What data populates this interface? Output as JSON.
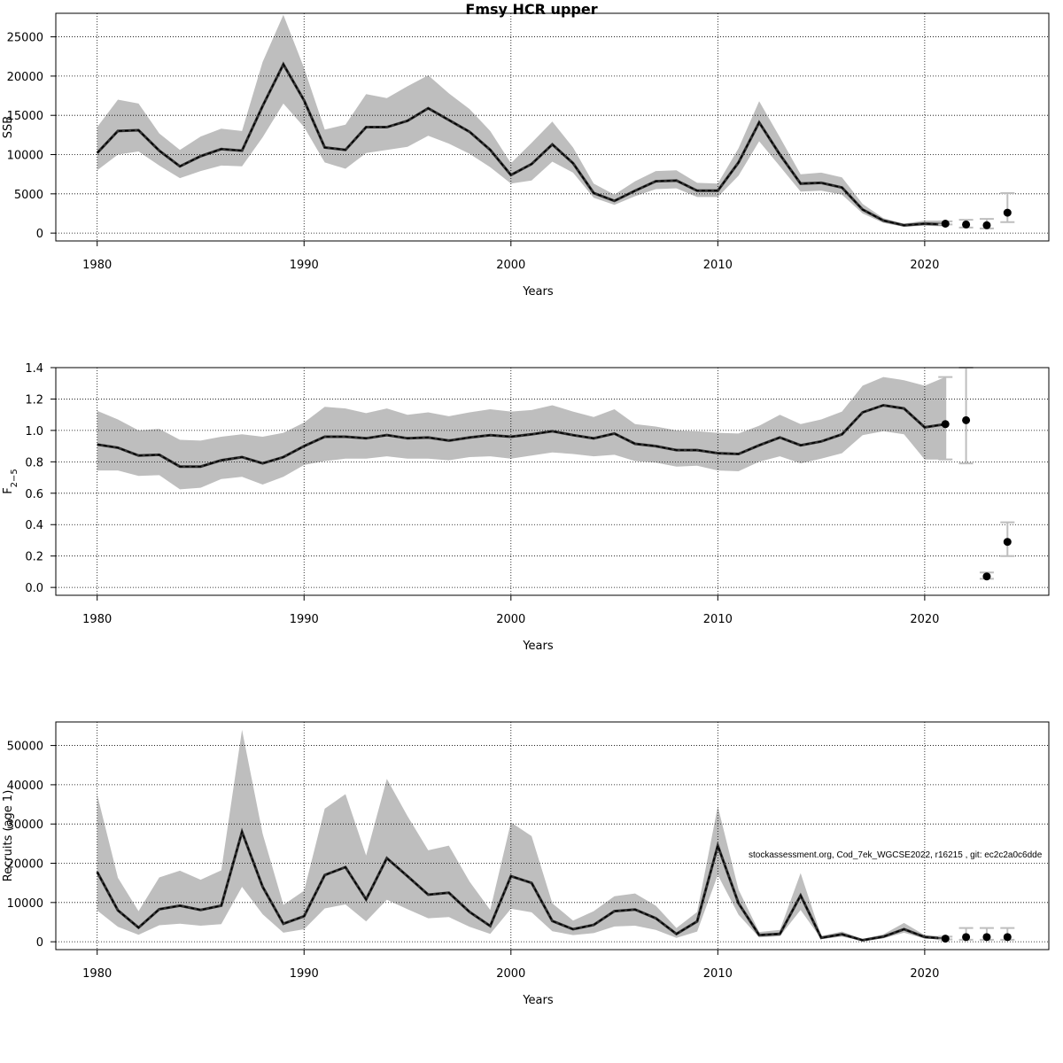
{
  "title": "Fmsy HCR upper",
  "watermark": "stockassessment.org, Cod_7ek_WGCSE2022, r16215 , git: ec2c2a0c6dde",
  "colors": {
    "band": "#bebebe",
    "line": "#000000",
    "grid": "#000000",
    "forecast_bar": "#bebebe",
    "forecast_point": "#000000"
  },
  "chart_data": [
    {
      "type": "line",
      "panel": "ssb",
      "xlabel": "Years",
      "ylabel": "SSB",
      "xlim": [
        1978,
        2026
      ],
      "ylim": [
        -1000,
        28000
      ],
      "xticks": [
        1980,
        1990,
        2000,
        2010,
        2020
      ],
      "yticks": [
        0,
        5000,
        10000,
        15000,
        20000,
        25000
      ],
      "grid": true,
      "years": [
        1980,
        1981,
        1982,
        1983,
        1984,
        1985,
        1986,
        1987,
        1988,
        1989,
        1990,
        1991,
        1992,
        1993,
        1994,
        1995,
        1996,
        1997,
        1998,
        1999,
        2000,
        2001,
        2002,
        2003,
        2004,
        2005,
        2006,
        2007,
        2008,
        2009,
        2010,
        2011,
        2012,
        2013,
        2014,
        2015,
        2016,
        2017,
        2018,
        2019,
        2020,
        2021
      ],
      "estimate": [
        10200,
        13000,
        13100,
        10500,
        8500,
        9800,
        10700,
        10500,
        16200,
        21500,
        16900,
        10900,
        10600,
        13500,
        13500,
        14300,
        15900,
        14400,
        12900,
        10600,
        7400,
        8800,
        11300,
        8900,
        5100,
        4100,
        5400,
        6600,
        6700,
        5400,
        5400,
        9000,
        14100,
        10000,
        6300,
        6400,
        5800,
        3000,
        1600,
        1000,
        1200,
        1100
      ],
      "lower": [
        8000,
        10000,
        10400,
        8600,
        7000,
        7900,
        8600,
        8500,
        12200,
        16500,
        13500,
        9000,
        8200,
        10200,
        10600,
        11000,
        12400,
        11400,
        10100,
        8400,
        6300,
        6700,
        9100,
        7700,
        4500,
        3600,
        4700,
        5600,
        5700,
        4600,
        4600,
        7300,
        11700,
        8500,
        5300,
        5400,
        4900,
        2500,
        1300,
        800,
        950,
        850
      ],
      "upper": [
        13500,
        17000,
        16500,
        12700,
        10600,
        12300,
        13300,
        13000,
        21800,
        27800,
        21000,
        13200,
        13800,
        17700,
        17200,
        18700,
        20100,
        17800,
        15800,
        13000,
        8900,
        11500,
        14200,
        10900,
        6300,
        4900,
        6600,
        7900,
        8000,
        6400,
        6300,
        10800,
        16800,
        12200,
        7500,
        7700,
        7100,
        3700,
        1900,
        1200,
        1600,
        1600
      ],
      "forecast": {
        "years": [
          2021,
          2022,
          2023,
          2024
        ],
        "values": [
          1200,
          1100,
          1000,
          2600
        ],
        "lower": [
          1100,
          700,
          600,
          1400
        ],
        "upper": [
          1500,
          1700,
          1800,
          5100
        ]
      }
    },
    {
      "type": "line",
      "panel": "fbar",
      "xlabel": "Years",
      "ylabel": "F2-5",
      "ylabel_main": "F",
      "ylabel_sub": "2−5",
      "xlim": [
        1978,
        2026
      ],
      "ylim": [
        -0.05,
        1.4
      ],
      "xticks": [
        1980,
        1990,
        2000,
        2010,
        2020
      ],
      "yticks": [
        "0.0",
        "0.2",
        "0.4",
        "0.6",
        "0.8",
        "1.0",
        "1.2",
        "1.4"
      ],
      "grid": true,
      "years": [
        1980,
        1981,
        1982,
        1983,
        1984,
        1985,
        1986,
        1987,
        1988,
        1989,
        1990,
        1991,
        1992,
        1993,
        1994,
        1995,
        1996,
        1997,
        1998,
        1999,
        2000,
        2001,
        2002,
        2003,
        2004,
        2005,
        2006,
        2007,
        2008,
        2009,
        2010,
        2011,
        2012,
        2013,
        2014,
        2015,
        2016,
        2017,
        2018,
        2019,
        2020,
        2021
      ],
      "estimate": [
        0.91,
        0.89,
        0.84,
        0.845,
        0.77,
        0.77,
        0.81,
        0.83,
        0.79,
        0.83,
        0.9,
        0.96,
        0.96,
        0.95,
        0.97,
        0.95,
        0.955,
        0.935,
        0.955,
        0.97,
        0.96,
        0.975,
        0.995,
        0.97,
        0.95,
        0.98,
        0.915,
        0.9,
        0.875,
        0.875,
        0.855,
        0.85,
        0.905,
        0.955,
        0.905,
        0.93,
        0.975,
        1.115,
        1.16,
        1.14,
        1.02,
        1.04
      ],
      "lower": [
        0.745,
        0.745,
        0.71,
        0.715,
        0.625,
        0.635,
        0.69,
        0.705,
        0.655,
        0.705,
        0.78,
        0.805,
        0.82,
        0.82,
        0.835,
        0.82,
        0.82,
        0.81,
        0.83,
        0.835,
        0.82,
        0.84,
        0.86,
        0.85,
        0.835,
        0.845,
        0.805,
        0.795,
        0.77,
        0.775,
        0.745,
        0.74,
        0.8,
        0.835,
        0.79,
        0.82,
        0.855,
        0.97,
        0.995,
        0.975,
        0.815,
        0.815
      ],
      "upper": [
        1.125,
        1.07,
        1.0,
        1.01,
        0.94,
        0.935,
        0.96,
        0.975,
        0.96,
        0.985,
        1.05,
        1.15,
        1.14,
        1.11,
        1.14,
        1.1,
        1.115,
        1.09,
        1.115,
        1.135,
        1.12,
        1.13,
        1.16,
        1.12,
        1.085,
        1.135,
        1.04,
        1.025,
        1.0,
        0.995,
        0.985,
        0.98,
        1.03,
        1.1,
        1.04,
        1.07,
        1.12,
        1.285,
        1.34,
        1.32,
        1.285,
        1.34
      ],
      "forecast": {
        "years": [
          2021,
          2022,
          2023,
          2024
        ],
        "values": [
          1.04,
          1.065,
          0.07,
          0.29
        ],
        "lower": [
          0.815,
          0.79,
          0.055,
          0.2
        ],
        "upper": [
          1.34,
          1.4,
          0.095,
          0.415
        ]
      }
    },
    {
      "type": "line",
      "panel": "recruits",
      "xlabel": "Years",
      "ylabel": "Recruits (age 1)",
      "xlim": [
        1978,
        2026
      ],
      "ylim": [
        -2000,
        56000
      ],
      "xticks": [
        1980,
        1990,
        2000,
        2010,
        2020
      ],
      "yticks": [
        0,
        10000,
        20000,
        30000,
        40000,
        50000
      ],
      "grid": true,
      "years": [
        1980,
        1981,
        1982,
        1983,
        1984,
        1985,
        1986,
        1987,
        1988,
        1989,
        1990,
        1991,
        1992,
        1993,
        1994,
        1995,
        1996,
        1997,
        1998,
        1999,
        2000,
        2001,
        2002,
        2003,
        2004,
        2005,
        2006,
        2007,
        2008,
        2009,
        2010,
        2011,
        2012,
        2013,
        2014,
        2015,
        2016,
        2017,
        2018,
        2019,
        2020,
        2021
      ],
      "estimate": [
        17800,
        8000,
        3600,
        8300,
        9200,
        8100,
        9200,
        28000,
        14000,
        4600,
        6500,
        17000,
        19000,
        10800,
        21300,
        16700,
        12000,
        12500,
        7600,
        4000,
        16700,
        15000,
        5300,
        3200,
        4300,
        7800,
        8200,
        6000,
        2000,
        5200,
        24500,
        9800,
        1700,
        2000,
        11800,
        1000,
        1900,
        400,
        1300,
        3200,
        1200,
        800
      ],
      "lower": [
        8000,
        3800,
        1800,
        4200,
        4600,
        4100,
        4500,
        14000,
        7000,
        2300,
        3200,
        8500,
        9500,
        5200,
        10700,
        8300,
        6000,
        6300,
        3800,
        2000,
        8400,
        7500,
        2700,
        1700,
        2200,
        3900,
        4100,
        3000,
        1000,
        2600,
        17000,
        6900,
        1100,
        1400,
        8100,
        700,
        1300,
        250,
        900,
        2300,
        800,
        600
      ],
      "upper": [
        37500,
        16300,
        7800,
        16400,
        18100,
        15800,
        18200,
        54000,
        27500,
        9400,
        13000,
        33900,
        37600,
        22000,
        41500,
        32000,
        23300,
        24500,
        15300,
        8100,
        30400,
        26900,
        9800,
        5400,
        7800,
        11600,
        12300,
        9200,
        3500,
        7600,
        34500,
        13300,
        2500,
        3000,
        17500,
        1500,
        2600,
        700,
        1900,
        4800,
        1700,
        1300
      ],
      "forecast": {
        "years": [
          2021,
          2022,
          2023,
          2024
        ],
        "values": [
          800,
          1200,
          1200,
          1200
        ],
        "lower": [
          600,
          500,
          500,
          500
        ],
        "upper": [
          1300,
          3500,
          3500,
          3500
        ]
      }
    }
  ]
}
